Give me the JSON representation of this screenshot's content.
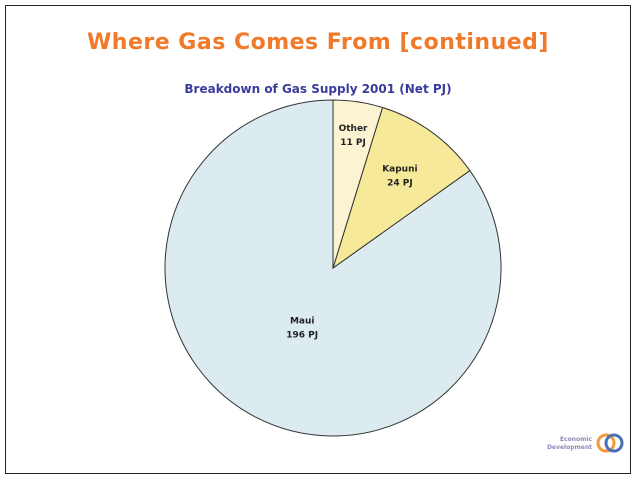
{
  "slide": {
    "title": "Where Gas Comes From [continued]"
  },
  "chart_data": {
    "type": "pie",
    "title": "Breakdown of Gas Supply 2001 (Net PJ)",
    "slices": [
      {
        "label": "Maui",
        "value": 196,
        "value_label": "196 PJ",
        "color": "#dcebf0"
      },
      {
        "label": "Kapuni",
        "value": 24,
        "value_label": "24 PJ",
        "color": "#f6ea9a"
      },
      {
        "label": "Other",
        "value": 11,
        "value_label": "11 PJ",
        "color": "#fbf3d2"
      }
    ],
    "start_angle_deg": 0,
    "direction": "counterclockwise",
    "legend": "none"
  },
  "logo": {
    "line1": "Economic",
    "line2": "Development",
    "colors": {
      "orange": "#f29a3a",
      "blue": "#4a6fb5"
    }
  }
}
